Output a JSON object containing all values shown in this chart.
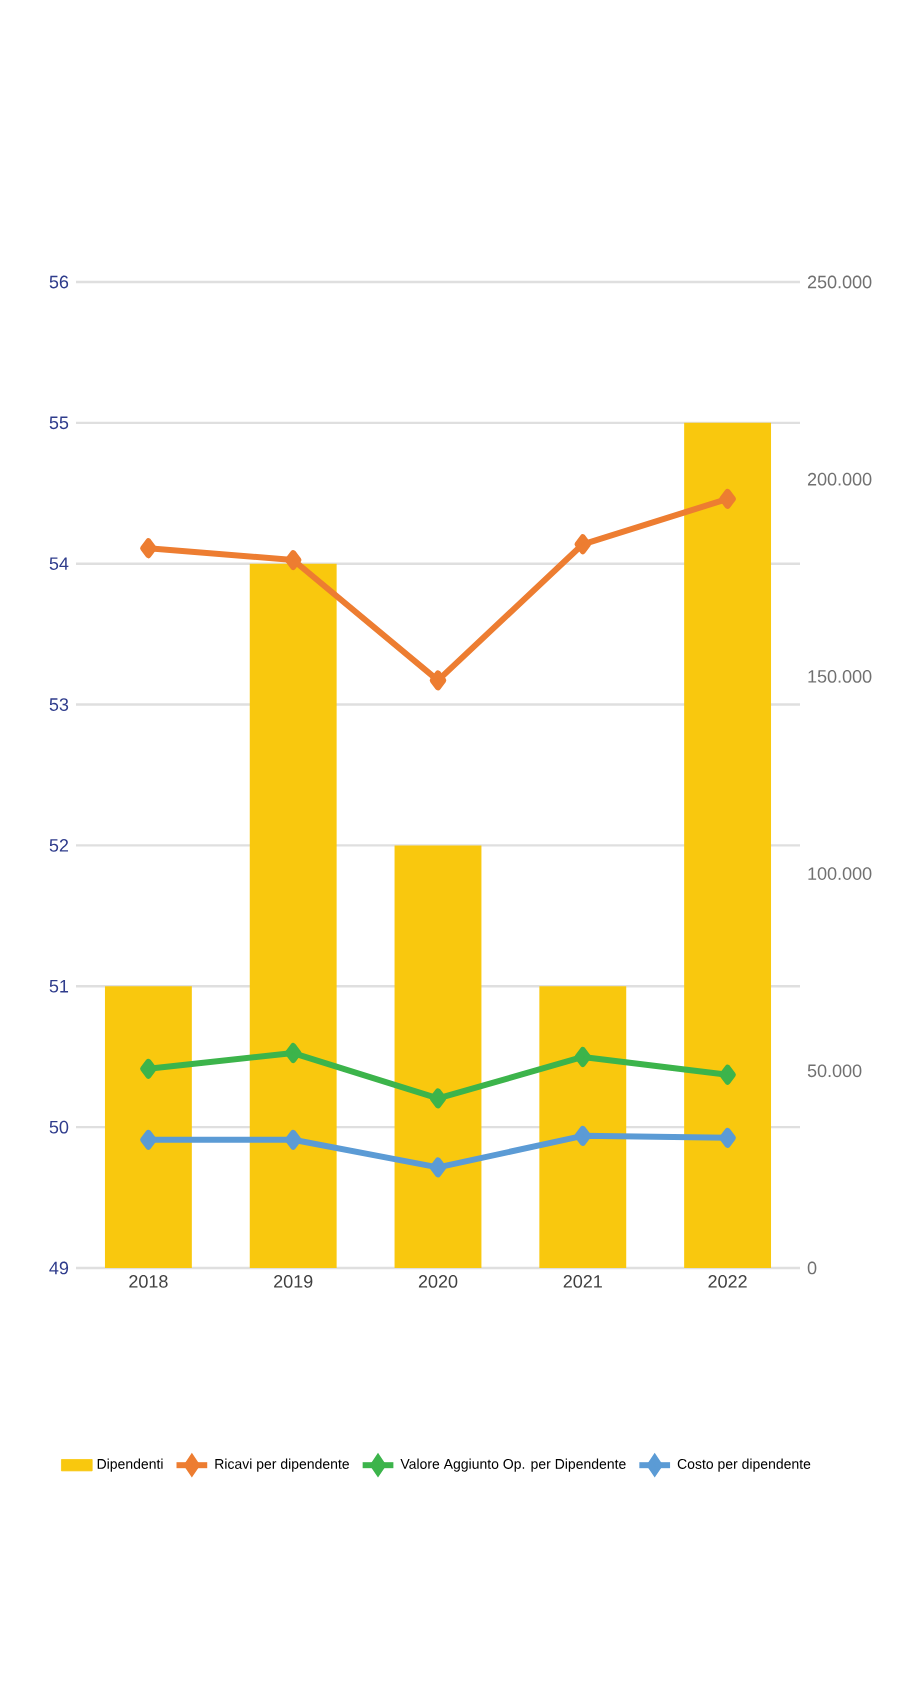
{
  "chart_data": {
    "type": "bar",
    "categories": [
      "2018",
      "2019",
      "2020",
      "2021",
      "2022"
    ],
    "series": [
      {
        "name": "Dipendenti",
        "color": "#f9c80e",
        "values": [
          51,
          54,
          52,
          51,
          55
        ]
      },
      {
        "name": "Ricavi per dipendente",
        "type": "line",
        "axis": "y2",
        "color": "#ed7d31",
        "values": [
          182500,
          179500,
          149000,
          183500,
          195000
        ]
      },
      {
        "name": "Valore Aggiunto Op. per Dipendente",
        "type": "line",
        "axis": "y2",
        "color": "#3cb44b",
        "values": [
          50500,
          54500,
          43000,
          53500,
          49000
        ]
      },
      {
        "name": "Costo per dipendente",
        "type": "line",
        "axis": "y2",
        "color": "#5b9bd5",
        "values": [
          32500,
          32500,
          25500,
          33500,
          33000
        ]
      }
    ],
    "ylim": [
      49,
      56
    ],
    "yticks": [
      49,
      50,
      51,
      52,
      53,
      54,
      55,
      56
    ],
    "y2lim": [
      0,
      250000
    ],
    "y2ticks": [
      0,
      {
        "value": 50000,
        "label": "50.000"
      },
      {
        "value": 100000,
        "label": "100.000"
      },
      {
        "value": 150000,
        "label": "150.000"
      },
      {
        "value": 200000,
        "label": "200.000"
      },
      {
        "value": 250000,
        "label": "250.000"
      }
    ],
    "grid": "y",
    "legend": "bottom",
    "marker": "diamond"
  }
}
